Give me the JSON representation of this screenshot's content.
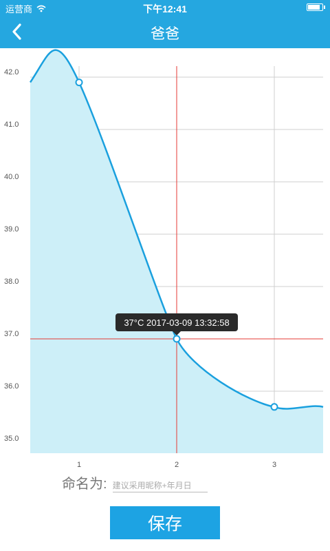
{
  "status_bar": {
    "carrier": "运营商",
    "time": "下午12:41",
    "battery_level": 0.9
  },
  "nav": {
    "title": "爸爸"
  },
  "form": {
    "name_label": "命名为:",
    "name_value": "",
    "name_placeholder": "建议采用昵称+年月日",
    "save_label": "保存"
  },
  "colors": {
    "header": "#25a7e0",
    "line": "#1aa0de",
    "fill": "#cdeff8",
    "crosshair": "#e53935",
    "button": "#1da3e3"
  },
  "icons": {
    "back": "chevron-left-icon",
    "wifi": "wifi-icon",
    "battery": "battery-icon"
  },
  "chart_data": {
    "type": "area",
    "x": [
      0.5,
      1,
      2,
      3,
      3.5
    ],
    "values": [
      41.9,
      41.9,
      37.0,
      35.7,
      35.7
    ],
    "marked_points": [
      1,
      2,
      3
    ],
    "x_ticks": [
      "1",
      "2",
      "3"
    ],
    "y_ticks": [
      "35.0",
      "36.0",
      "37.0",
      "38.0",
      "39.0",
      "40.0",
      "41.0",
      "42.0"
    ],
    "xlim": [
      0.5,
      3.5
    ],
    "ylim": [
      34.8,
      42.5
    ],
    "grid": true,
    "highlight": {
      "x": 2,
      "y": 37.0,
      "label": "37°C 2017-03-09 13:32:58"
    }
  }
}
